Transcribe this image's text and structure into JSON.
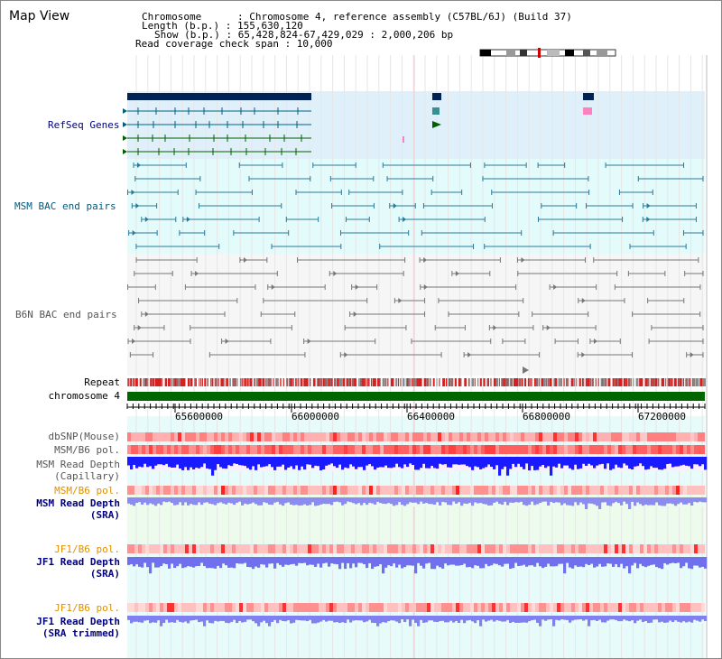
{
  "app_title": "Map View",
  "header": {
    "row1": "Chromosome      : Chromosome 4, reference assembly (C57BL/6J) (Build 37)",
    "row2": "Length (b.p.) : 155,630,120",
    "row3": "Show (b.p.) : 65,428,824-67,429,029 : 2,000,206 bp",
    "row4": "Read coverage check span : 10,000"
  },
  "tracks": {
    "refseq": "RefSeq Genes",
    "msm_bac": "MSM BAC end pairs",
    "b6n_bac": "B6N BAC end pairs",
    "repeat": "Repeat",
    "chromosome": "chromosome 4",
    "dbsnp": "dbSNP(Mouse)",
    "msm_b6_pol_1": "MSM/B6 pol.",
    "msm_depth_cap_1": "MSM Read Depth",
    "msm_depth_cap_2": "(Capillary)",
    "msm_b6_pol_2": "MSM/B6 pol.",
    "msm_depth_sra_1": "MSM Read Depth",
    "msm_depth_sra_2": "(SRA)",
    "jf1_b6_pol_1": "JF1/B6 pol.",
    "jf1_depth_sra_1": "JF1 Read Depth",
    "jf1_depth_sra_2": "(SRA)",
    "jf1_b6_pol_2": "JF1/B6 pol.",
    "jf1_depth_trim_1": "JF1 Read Depth",
    "jf1_depth_trim_2": "(SRA trimmed)"
  },
  "axis": {
    "ticks": [
      "65600000",
      "66000000",
      "66400000",
      "66800000",
      "67200000"
    ]
  },
  "colors": {
    "navy_label": "#000080",
    "teal_label": "#005a80",
    "gray_label": "#555555",
    "orange_label": "#e09000",
    "refseq_bg": "#dff0fb",
    "msm_bg": "#e4fbfb",
    "b6n_bg": "#f6f6f6",
    "chromosome_bar": "#006600",
    "depth_blue": "#1a1aff",
    "depth_light": "#8080f0"
  }
}
